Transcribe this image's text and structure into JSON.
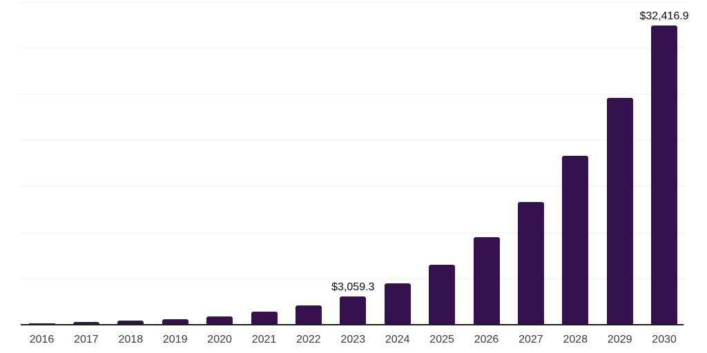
{
  "chart_data": {
    "type": "bar",
    "title": "",
    "xlabel": "",
    "ylabel": "",
    "categories": [
      "2016",
      "2017",
      "2018",
      "2019",
      "2020",
      "2021",
      "2022",
      "2023",
      "2024",
      "2025",
      "2026",
      "2027",
      "2028",
      "2029",
      "2030"
    ],
    "values": [
      130,
      250,
      440,
      530,
      840,
      1350,
      2050,
      3059.3,
      4450,
      6500,
      9430,
      13300,
      18300,
      24550,
      32416.9
    ],
    "data_labels": [
      {
        "category": "2023",
        "text": "$3,059.3"
      },
      {
        "category": "2030",
        "text": "$32,416.9"
      }
    ],
    "ylim": [
      0,
      35000
    ],
    "gridline_step": 5000,
    "grid": "horizontal-only",
    "y_tick_labels_visible": false,
    "legend": "none"
  },
  "colors": {
    "bar": "#35114e",
    "gridline": "#f2f2f4",
    "axis_line": "#1f1f1f",
    "data_label": "#0b0b0b",
    "tick_label": "#3c3c3c",
    "background": "#ffffff"
  }
}
